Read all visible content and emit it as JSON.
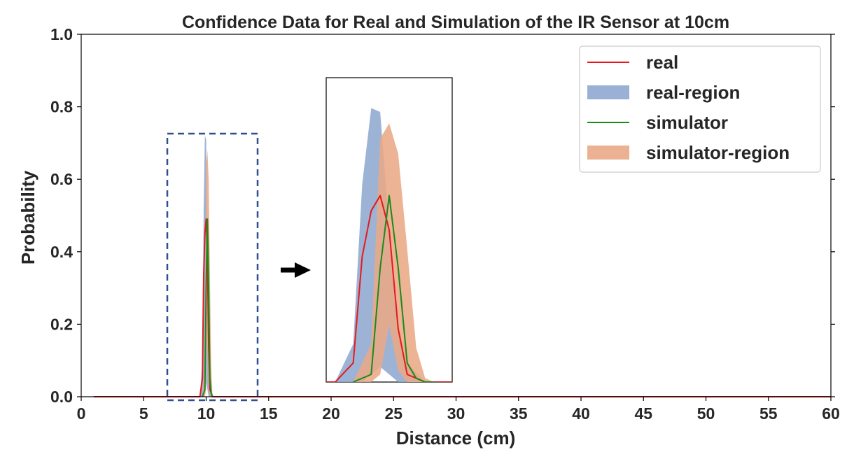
{
  "chart_data": {
    "type": "line",
    "title": "Confidence Data for Real and Simulation of the IR Sensor at 10cm",
    "xlabel": "Distance (cm)",
    "ylabel": "Probability",
    "xlim": [
      0,
      60
    ],
    "ylim": [
      0,
      1.0
    ],
    "xticks": [
      0,
      5,
      10,
      15,
      20,
      25,
      30,
      35,
      40,
      45,
      50,
      55,
      60
    ],
    "xtick_labels": [
      "0",
      "5",
      "10",
      "15",
      "20",
      "25",
      "30",
      "35",
      "40",
      "45",
      "50",
      "55",
      "60"
    ],
    "yticks": [
      0.0,
      0.2,
      0.4,
      0.6,
      0.8,
      1.0
    ],
    "ytick_labels": [
      "0.0",
      "0.2",
      "0.4",
      "0.6",
      "0.8",
      "1.0"
    ],
    "grid": false,
    "legend_position": "top-right",
    "series": [
      {
        "name": "real",
        "kind": "line",
        "color": "#e41a1c",
        "x": [
          1,
          9.5,
          9.7,
          9.8,
          9.9,
          10.0,
          10.1,
          10.2,
          10.3,
          10.5,
          60
        ],
        "y": [
          0,
          0,
          0.05,
          0.33,
          0.45,
          0.49,
          0.4,
          0.14,
          0.02,
          0,
          0
        ]
      },
      {
        "name": "real-region",
        "kind": "band",
        "color": "#8fa8d0",
        "x": [
          9.5,
          9.7,
          9.8,
          9.9,
          10.0,
          10.1,
          10.2,
          10.3,
          10.5
        ],
        "lower": [
          0,
          0,
          0,
          0.02,
          0.04,
          0.02,
          0,
          0,
          0
        ],
        "upper": [
          0,
          0.1,
          0.52,
          0.72,
          0.71,
          0.4,
          0.15,
          0.05,
          0
        ]
      },
      {
        "name": "simulator",
        "kind": "line",
        "color": "#1a8a1a",
        "x": [
          9.7,
          9.9,
          10.0,
          10.1,
          10.2,
          10.3,
          10.4,
          10.5,
          10.6
        ],
        "y": [
          0,
          0.02,
          0.3,
          0.49,
          0.3,
          0.05,
          0.01,
          0,
          0
        ]
      },
      {
        "name": "simulator-region",
        "kind": "band",
        "color": "#e9a886",
        "x": [
          9.7,
          9.9,
          10.0,
          10.1,
          10.2,
          10.3,
          10.4,
          10.5,
          10.6
        ],
        "lower": [
          0,
          0,
          0.02,
          0.15,
          0.03,
          0,
          0,
          0,
          0
        ],
        "upper": [
          0,
          0.1,
          0.64,
          0.68,
          0.6,
          0.35,
          0.09,
          0.01,
          0
        ]
      }
    ],
    "legend": [
      "real",
      "real-region",
      "simulator",
      "simulator-region"
    ]
  }
}
